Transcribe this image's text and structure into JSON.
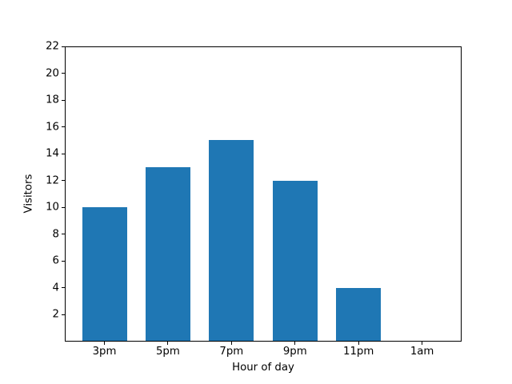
{
  "figure": {
    "background": "#ffffff"
  },
  "chart_data": {
    "type": "bar",
    "title": "",
    "categories": [
      "3pm",
      "5pm",
      "7pm",
      "9pm",
      "11pm",
      "1am"
    ],
    "values": [
      10,
      13,
      15,
      12,
      4,
      0
    ],
    "xlabel": "Hour of day",
    "ylabel": "Visitors",
    "ylim": [
      0,
      22
    ],
    "yticks": [
      2,
      4,
      6,
      8,
      10,
      12,
      14,
      16,
      18,
      20,
      22
    ],
    "bar_color": "#1f77b4",
    "axis_color": "#000000",
    "text_color": "#000000",
    "grid": false,
    "legend_position": "none"
  }
}
